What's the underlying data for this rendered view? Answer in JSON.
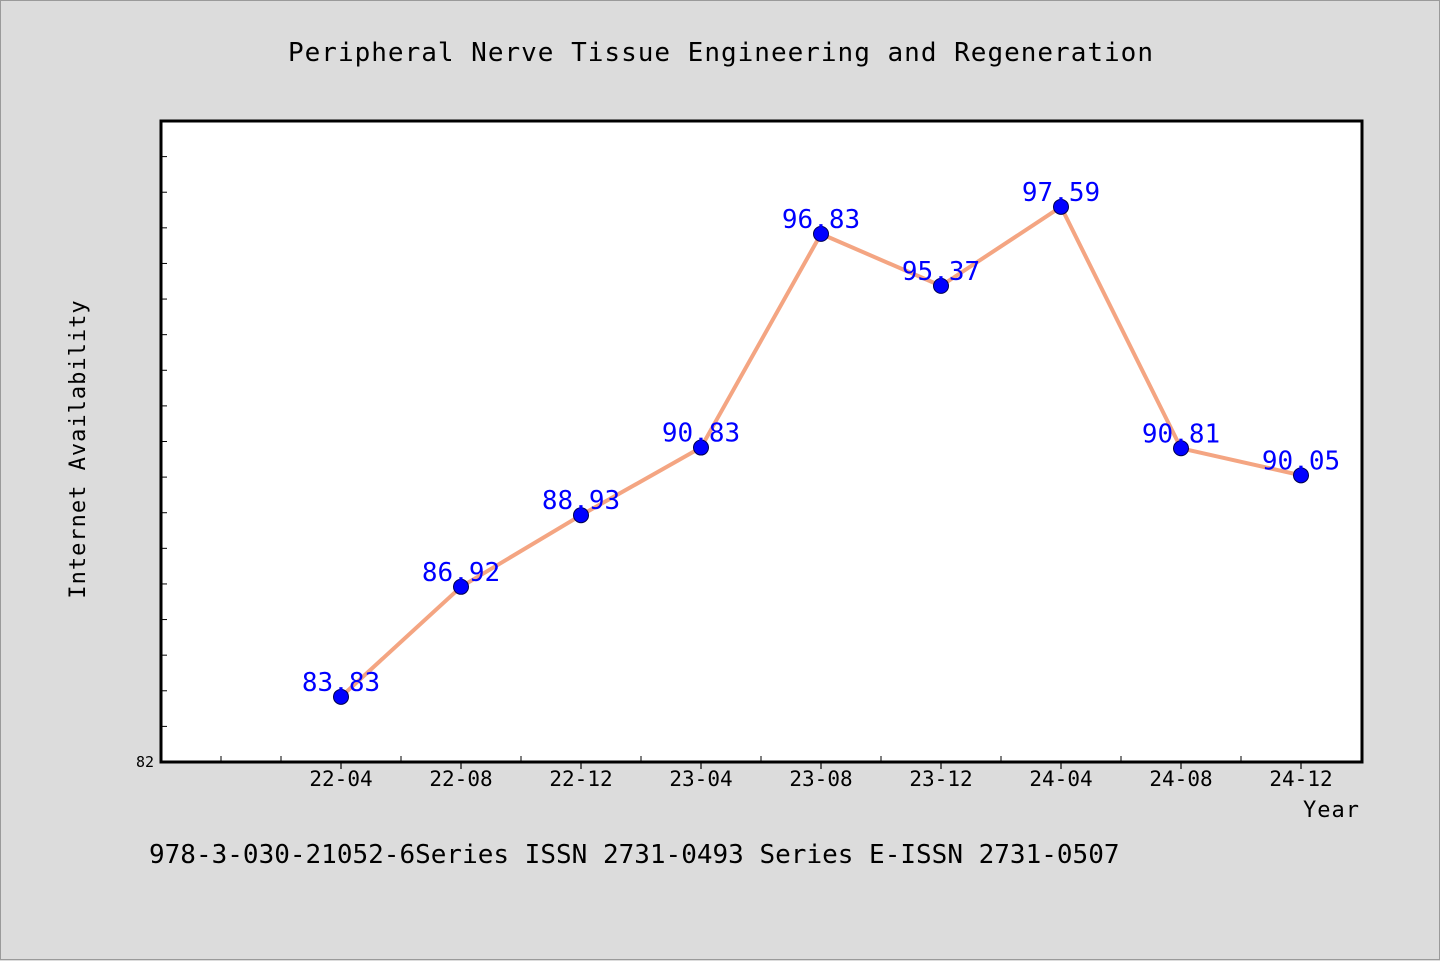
{
  "chart_data": {
    "type": "line",
    "title": "Peripheral Nerve Tissue Engineering and Regeneration",
    "xlabel": "Year",
    "ylabel": "Internet Availability",
    "categories": [
      "22-04",
      "22-08",
      "22-12",
      "23-04",
      "23-08",
      "23-12",
      "24-04",
      "24-08",
      "24-12"
    ],
    "series": [
      {
        "values": [
          83.83,
          86.92,
          88.93,
          90.83,
          96.83,
          95.37,
          97.59,
          90.81,
          90.05
        ],
        "data_labels": [
          "83.83",
          "86.92",
          "88.93",
          "90.83",
          "96.83",
          "95.37",
          "97.59",
          "90.81",
          "90.05"
        ]
      }
    ],
    "y_min_label": "82",
    "ylim": [
      82,
      100
    ],
    "grid": false,
    "line_color": "#f4a582",
    "marker_color": "#0000ff",
    "label_color": "#0000ff"
  },
  "footer": {
    "text": "978-3-030-21052-6Series ISSN 2731-0493 Series E-ISSN 2731-0507"
  }
}
